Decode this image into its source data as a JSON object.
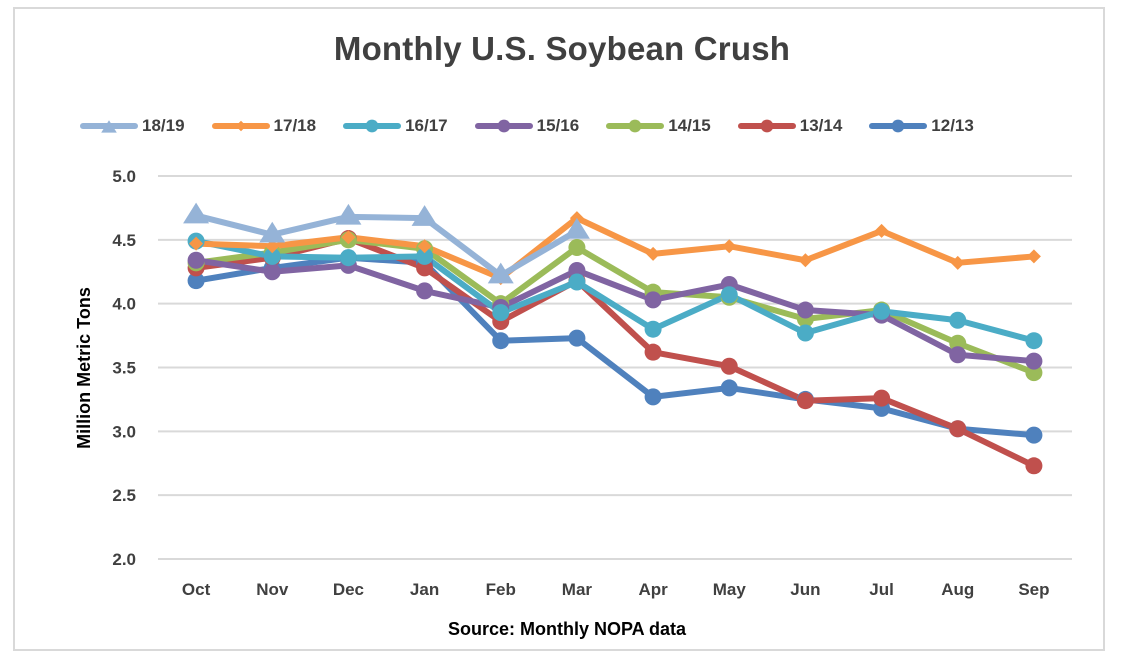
{
  "chart_data": {
    "type": "line",
    "title": "Monthly U.S. Soybean Crush",
    "xlabel": "Source: Monthly NOPA data",
    "ylabel": "Million Metric Tons",
    "ylim": [
      2.0,
      5.0
    ],
    "yticks": [
      "5.0",
      "4.5",
      "4.0",
      "3.5",
      "3.0",
      "2.5",
      "2.0"
    ],
    "ytick_values": [
      5.0,
      4.5,
      4.0,
      3.5,
      3.0,
      2.5,
      2.0
    ],
    "grid": true,
    "legend_position": "top",
    "categories": [
      "Oct",
      "Nov",
      "Dec",
      "Jan",
      "Feb",
      "Mar",
      "Apr",
      "May",
      "Jun",
      "Jul",
      "Aug",
      "Sep"
    ],
    "series": [
      {
        "name": "12/13",
        "color": "#4f81bd",
        "marker": "circle",
        "values": [
          4.18,
          4.28,
          4.36,
          4.32,
          3.71,
          3.73,
          3.27,
          3.34,
          3.25,
          3.18,
          3.02,
          2.97
        ]
      },
      {
        "name": "13/14",
        "color": "#c0504d",
        "marker": "circle",
        "values": [
          4.28,
          4.36,
          4.51,
          4.28,
          3.86,
          4.18,
          3.62,
          3.51,
          3.24,
          3.26,
          3.02,
          2.73
        ]
      },
      {
        "name": "14/15",
        "color": "#9bbb59",
        "marker": "circle",
        "values": [
          4.32,
          4.4,
          4.5,
          4.43,
          4.0,
          4.44,
          4.09,
          4.05,
          3.88,
          3.95,
          3.69,
          3.46
        ]
      },
      {
        "name": "15/16",
        "color": "#8064a2",
        "marker": "circle",
        "values": [
          4.34,
          4.25,
          4.3,
          4.1,
          3.97,
          4.26,
          4.03,
          4.15,
          3.95,
          3.91,
          3.6,
          3.55
        ]
      },
      {
        "name": "16/17",
        "color": "#4bacc6",
        "marker": "circle",
        "values": [
          4.49,
          4.37,
          4.36,
          4.37,
          3.93,
          4.17,
          3.8,
          4.07,
          3.77,
          3.94,
          3.87,
          3.71
        ]
      },
      {
        "name": "17/18",
        "color": "#f79646",
        "marker": "diamond",
        "values": [
          4.47,
          4.45,
          4.52,
          4.45,
          4.2,
          4.67,
          4.39,
          4.45,
          4.34,
          4.57,
          4.32,
          4.37
        ]
      },
      {
        "name": "18/19",
        "color": "#95b3d7",
        "marker": "triangle",
        "values": [
          4.69,
          4.54,
          4.68,
          4.67,
          4.22,
          4.57,
          null,
          null,
          null,
          null,
          null,
          null
        ]
      }
    ],
    "legend_order": [
      "18/19",
      "17/18",
      "16/17",
      "15/16",
      "14/15",
      "13/14",
      "12/13"
    ]
  }
}
